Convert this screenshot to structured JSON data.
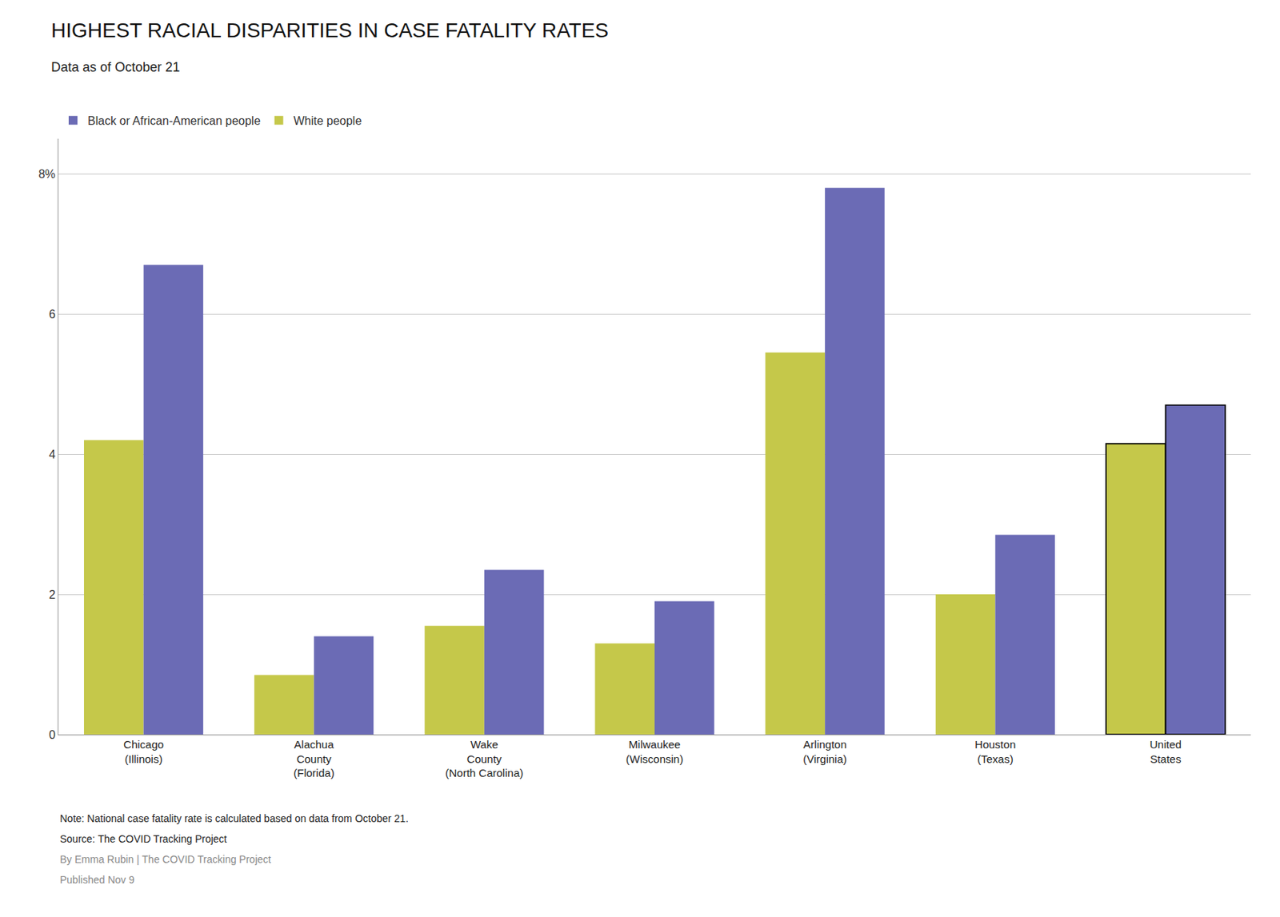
{
  "chart_data": {
    "type": "bar",
    "title": "HIGHEST RACIAL DISPARITIES IN CASE FATALITY RATES",
    "subtitle": "Data as of October 21",
    "categories": [
      "Chicago\n(Illinois)",
      "Alachua\nCounty\n(Florida)",
      "Wake\nCounty\n(North Carolina)",
      "Milwaukee\n(Wisconsin)",
      "Arlington\n(Virginia)",
      "Houston\n(Texas)",
      "United\nStates"
    ],
    "series": [
      {
        "name": "White people",
        "color": "#c5c84a",
        "values": [
          4.2,
          0.85,
          1.55,
          1.3,
          5.45,
          2.0,
          4.15
        ]
      },
      {
        "name": "Black or African-American people",
        "color": "#6b6bb5",
        "values": [
          6.7,
          1.4,
          2.35,
          1.9,
          7.8,
          2.85,
          4.7
        ]
      }
    ],
    "ylim": [
      0,
      8.5
    ],
    "yticks": [
      0,
      2,
      4,
      6,
      {
        "value": 8,
        "label": "8%"
      }
    ],
    "grid": true,
    "legend": "upper left",
    "annotations": [
      "Note: National case fatality rate is calculated based on data from October 21.",
      "Source: The COVID Tracking Project",
      "By Emma Rubin | The COVID Tracking Project",
      "Published Nov 9"
    ]
  }
}
